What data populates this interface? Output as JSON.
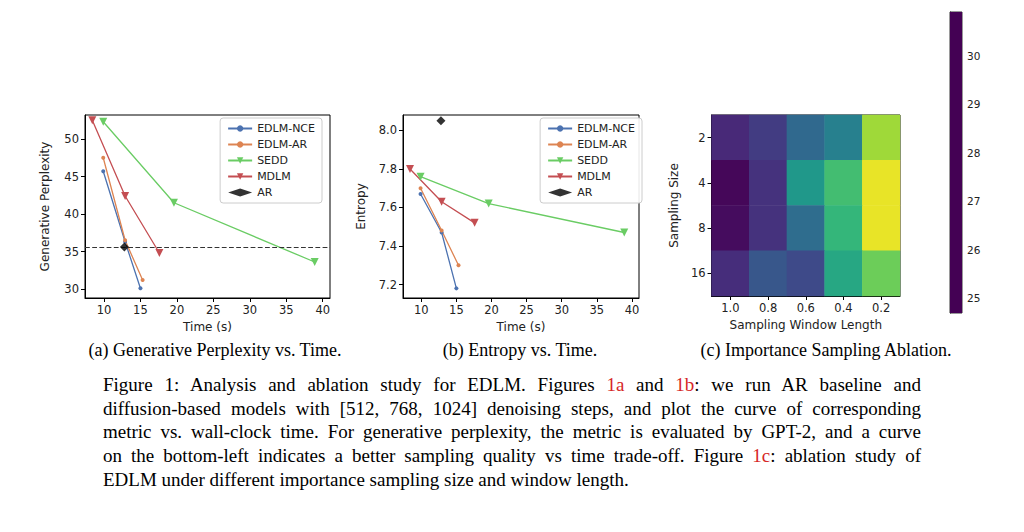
{
  "chart_data": [
    {
      "type": "line",
      "caption": "(a) Generative Perplexity vs. Time.",
      "x_label": "Time (s)",
      "y_label": "Generative Perplexity",
      "xlim": [
        7.4,
        41
      ],
      "xticks": [
        10,
        15,
        20,
        25,
        30,
        35,
        40
      ],
      "ylim": [
        28.8,
        53.2
      ],
      "yticks": [
        30,
        35,
        40,
        45,
        50
      ],
      "grid": false,
      "legend": "upper right",
      "hline": 35.6,
      "series": [
        {
          "name": "EDLM-NCE",
          "color": "#4c72b0",
          "marker": "circle",
          "x": [
            9.9,
            12.9,
            15.0
          ],
          "values": [
            45.7,
            36.3,
            30.1
          ]
        },
        {
          "name": "EDLM-AR",
          "color": "#dd8452",
          "marker": "circle",
          "x": [
            9.9,
            12.9,
            15.3
          ],
          "values": [
            47.5,
            36.5,
            31.2
          ]
        },
        {
          "name": "SEDD",
          "color": "#6acc64",
          "marker": "triangle_down",
          "x": [
            9.9,
            19.6,
            38.9
          ],
          "values": [
            52.3,
            41.5,
            33.6
          ]
        },
        {
          "name": "MDLM",
          "color": "#c44e52",
          "marker": "triangle_down",
          "x": [
            8.4,
            12.9,
            17.6
          ],
          "values": [
            52.5,
            42.4,
            34.8
          ]
        },
        {
          "name": "AR",
          "color": "#000000",
          "type": "scatter",
          "marker": "diamond",
          "x": [
            12.8
          ],
          "values": [
            35.6
          ]
        }
      ]
    },
    {
      "type": "line",
      "caption": "(b) Entropy vs. Time.",
      "x_label": "Time (s)",
      "y_label": "Entropy",
      "xlim": [
        7.4,
        41
      ],
      "xticks": [
        10,
        15,
        20,
        25,
        30,
        35,
        40
      ],
      "ylim": [
        7.13,
        8.08
      ],
      "yticks": [
        7.2,
        7.4,
        7.6,
        7.8,
        {
          "value": 8,
          "label": "8.0"
        }
      ],
      "grid": false,
      "legend": "upper right",
      "series": [
        {
          "name": "EDLM-NCE",
          "color": "#4c72b0",
          "marker": "circle",
          "x": [
            9.9,
            12.9,
            15.0
          ],
          "values": [
            7.67,
            7.47,
            7.18
          ]
        },
        {
          "name": "EDLM-AR",
          "color": "#dd8452",
          "marker": "circle",
          "x": [
            9.9,
            12.9,
            15.3
          ],
          "values": [
            7.7,
            7.48,
            7.3
          ]
        },
        {
          "name": "SEDD",
          "color": "#6acc64",
          "marker": "triangle_down",
          "x": [
            9.9,
            19.6,
            38.9
          ],
          "values": [
            7.76,
            7.62,
            7.47
          ]
        },
        {
          "name": "MDLM",
          "color": "#c44e52",
          "marker": "triangle_down",
          "x": [
            8.4,
            12.9,
            17.6
          ],
          "values": [
            7.8,
            7.63,
            7.52
          ]
        },
        {
          "name": "AR",
          "color": "#000000",
          "type": "scatter",
          "marker": "diamond",
          "x": [
            12.8
          ],
          "values": [
            8.05
          ]
        }
      ]
    },
    {
      "type": "heatmap",
      "caption": "(c) Importance Sampling Ablation.",
      "x_label": "Sampling Window Length",
      "y_label": "Sampling Size",
      "categories": [
        "1.0",
        "0.8",
        "0.6",
        "0.4",
        "0.2"
      ],
      "rows": [
        "2",
        "4",
        "8",
        "16"
      ],
      "cells": [
        [
          25.4,
          25.8,
          26.8,
          27.4,
          30.0
        ],
        [
          24.8,
          25.6,
          28.0,
          29.0,
          30.7
        ],
        [
          24.9,
          25.6,
          26.9,
          28.8,
          30.7
        ],
        [
          25.5,
          26.4,
          26.1,
          28.4,
          29.5
        ]
      ],
      "color": "viridis",
      "colorbar": {
        "range": [
          24.7,
          30.9
        ],
        "ticks": [
          25,
          26,
          27,
          28,
          29,
          30
        ]
      }
    }
  ],
  "figure_caption": [
    [
      {
        "text": "Figure 1: Analysis and ablation study for EDLM. Figures "
      },
      {
        "text": "1a",
        "ref": true
      },
      {
        "text": " and "
      },
      {
        "text": "1b",
        "ref": true
      },
      {
        "text": ": we run AR baseline and"
      }
    ],
    [
      {
        "text": "diffusion-based models with [512, 768, 1024] denoising steps, and plot the curve of corresponding"
      }
    ],
    [
      {
        "text": "metric vs. wall-clock time. For generative perplexity, the metric is evaluated by GPT-2, and a curve"
      }
    ],
    [
      {
        "text": "on the bottom-left indicates a better sampling quality vs time trade-off. Figure "
      },
      {
        "text": "1c",
        "ref": true
      },
      {
        "text": ": ablation study of"
      }
    ],
    [
      {
        "text": "EDLM under different importance sampling size and window length."
      }
    ]
  ]
}
